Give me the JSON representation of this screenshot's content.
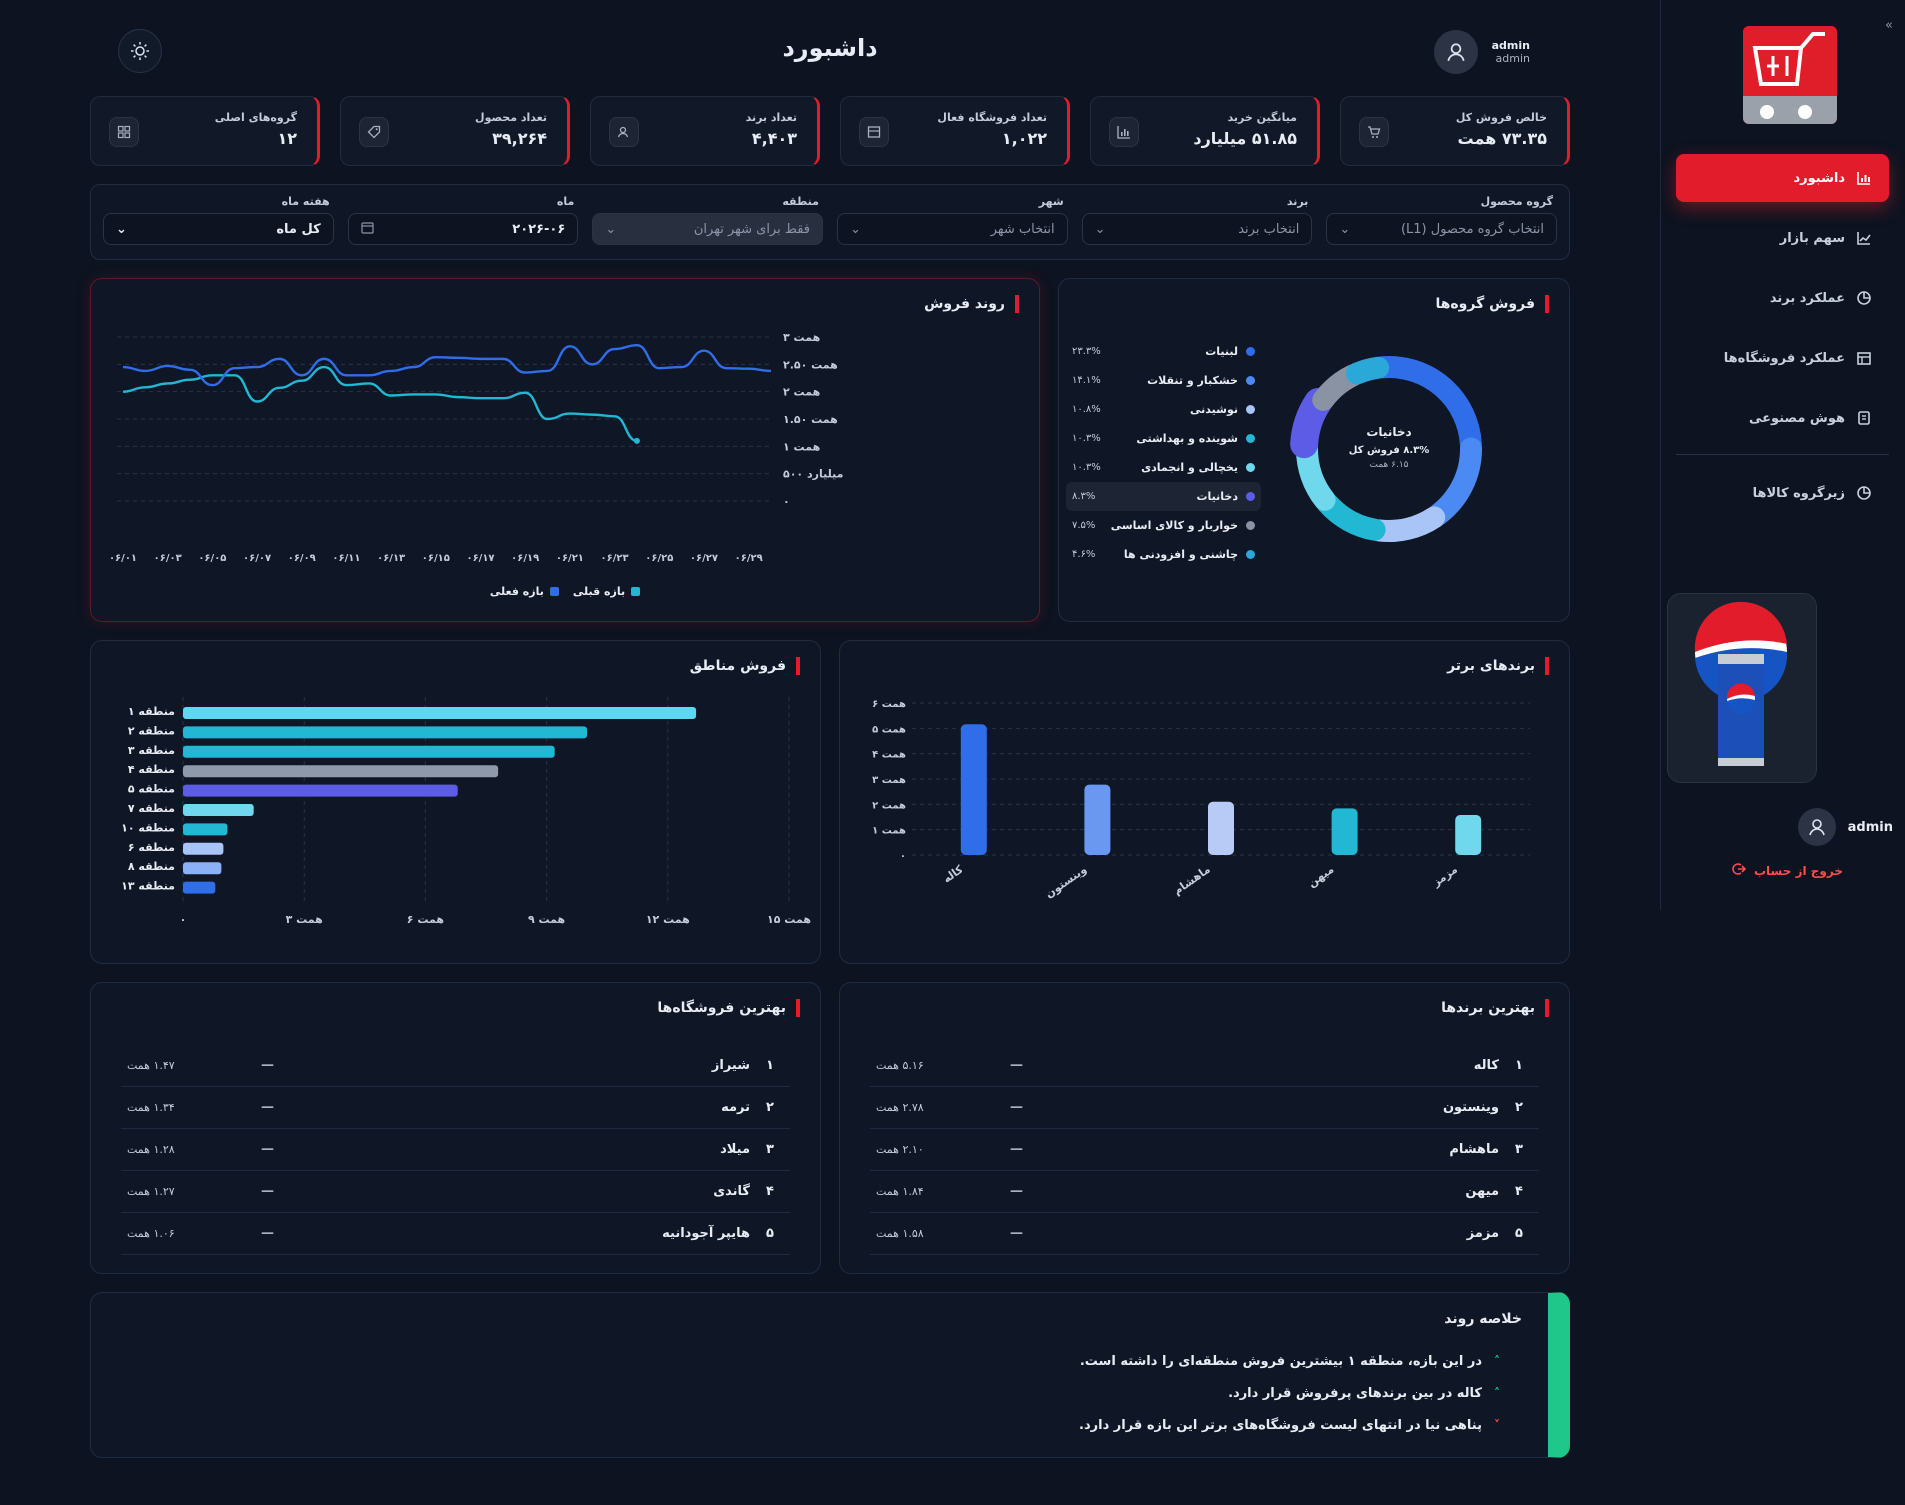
{
  "app": {
    "title": "داشبورد",
    "user": {
      "name": "admin",
      "role": "admin"
    }
  },
  "sidebar": {
    "items": [
      {
        "label": "داشبورد",
        "icon": "bar-chart-icon",
        "active": true
      },
      {
        "label": "سهم بازار",
        "icon": "line-chart-icon"
      },
      {
        "label": "عملکرد برند",
        "icon": "pie-chart-icon"
      },
      {
        "label": "عملکرد فروشگاه‌ها",
        "icon": "store-icon"
      },
      {
        "label": "هوش مصنوعی",
        "icon": "ai-chip-icon"
      },
      {
        "label": "زیرگروه کالاها",
        "icon": "pie-chart-icon"
      }
    ],
    "user": "admin",
    "logout": "خروج از حساب"
  },
  "kpis": [
    {
      "label": "خالص فروش کل",
      "value": "۷۳.۳۵ همت",
      "icon": "cart-icon"
    },
    {
      "label": "میانگین خرید",
      "value": "۵۱.۸۵ میلیارد",
      "icon": "bar-chart-icon"
    },
    {
      "label": "تعداد فروشگاه فعال",
      "value": "۱,۰۲۲",
      "icon": "store-icon"
    },
    {
      "label": "تعداد برند",
      "value": "۴,۴۰۳",
      "icon": "users-icon"
    },
    {
      "label": "تعداد محصول",
      "value": "۳۹,۲۶۴",
      "icon": "tag-icon"
    },
    {
      "label": "گروه‌های اصلی",
      "value": "۱۲",
      "icon": "grid-icon"
    }
  ],
  "filters": [
    {
      "label": "گروه محصول",
      "value": "انتخاب گروه محصول (L1)",
      "kind": "placeholder"
    },
    {
      "label": "برند",
      "value": "انتخاب برند",
      "kind": "placeholder"
    },
    {
      "label": "شهر",
      "value": "انتخاب شهر",
      "kind": "placeholder"
    },
    {
      "label": "منطقه",
      "value": "فقط برای شهر تهران",
      "kind": "disabled"
    },
    {
      "label": "ماه",
      "value": "۲۰۲۶-۰۶",
      "kind": "date"
    },
    {
      "label": "هفته ماه",
      "value": "کل ماه",
      "kind": "selected"
    }
  ],
  "trend": {
    "title": "روند فروش",
    "legend": {
      "current": "بازه فعلی",
      "previous": "بازه قبلی"
    },
    "colors": {
      "current": "#2f6ee8",
      "previous": "#22b7d3"
    }
  },
  "groups": {
    "title": "فروش گروه‌ها",
    "center": {
      "name": "دخانیات",
      "pct": "۸.۳% فروش کل",
      "value": "۶.۱۵ همت"
    },
    "items": [
      {
        "name": "لبنیات",
        "pct": "۲۳.۳%",
        "color": "#2f6ee8"
      },
      {
        "name": "خشکبار و تنقلات",
        "pct": "۱۴.۱%",
        "color": "#4a8af2"
      },
      {
        "name": "نوشیدنی",
        "pct": "۱۰.۸%",
        "color": "#a9c4f7"
      },
      {
        "name": "شوینده و بهداشتی",
        "pct": "۱۰.۳%",
        "color": "#22b7d3"
      },
      {
        "name": "یخچالی و انجمادی",
        "pct": "۱۰.۳%",
        "color": "#6fd8ec"
      },
      {
        "name": "دخانیات",
        "pct": "۸.۳%",
        "color": "#5c5ce6"
      },
      {
        "name": "خواربار و کالای اساسی",
        "pct": "۷.۵%",
        "color": "#8a93a4"
      },
      {
        "name": "چاشنی و افزودنی ها",
        "pct": "۴.۶%",
        "color": "#2aa8d8"
      }
    ]
  },
  "regions": {
    "title": "فروش مناطق"
  },
  "brands": {
    "title": "برندهای برتر"
  },
  "chart_data": [
    {
      "type": "line",
      "title": "روند فروش",
      "x": [
        "۰۶/۰۱",
        "۰۶/۰۲",
        "۰۶/۰۳",
        "۰۶/۰۴",
        "۰۶/۰۵",
        "۰۶/۰۶",
        "۰۶/۰۷",
        "۰۶/۰۸",
        "۰۶/۰۹",
        "۰۶/۱۰",
        "۰۶/۱۱",
        "۰۶/۱۲",
        "۰۶/۱۳",
        "۰۶/۱۴",
        "۰۶/۱۵",
        "۰۶/۱۶",
        "۰۶/۱۷",
        "۰۶/۱۸",
        "۰۶/۱۹",
        "۰۶/۲۰",
        "۰۶/۲۱",
        "۰۶/۲۲",
        "۰۶/۲۳",
        "۰۶/۲۴",
        "۰۶/۲۵",
        "۰۶/۲۶",
        "۰۶/۲۷",
        "۰۶/۲۸",
        "۰۶/۲۹",
        "۰۶/۳۰"
      ],
      "xticks": [
        "۰۶/۰۱",
        "۰۶/۰۳",
        "۰۶/۰۵",
        "۰۶/۰۷",
        "۰۶/۰۹",
        "۰۶/۱۱",
        "۰۶/۱۳",
        "۰۶/۱۵",
        "۰۶/۱۷",
        "۰۶/۱۹",
        "۰۶/۲۱",
        "۰۶/۲۳",
        "۰۶/۲۵",
        "۰۶/۲۷",
        "۰۶/۲۹"
      ],
      "yticks": [
        {
          "v": 0,
          "l": "۰"
        },
        {
          "v": 0.5,
          "l": "۵۰۰ میلیارد"
        },
        {
          "v": 1,
          "l": "۱ همت"
        },
        {
          "v": 1.5,
          "l": "۱.۵۰ همت"
        },
        {
          "v": 2,
          "l": "۲ همت"
        },
        {
          "v": 2.5,
          "l": "۲.۵۰ همت"
        },
        {
          "v": 3,
          "l": "۳ همت"
        }
      ],
      "ylim": [
        0,
        3
      ],
      "series": [
        {
          "name": "بازه فعلی",
          "values": [
            2.45,
            2.38,
            2.47,
            2.4,
            2.12,
            2.43,
            2.45,
            2.6,
            2.3,
            2.6,
            2.3,
            2.3,
            2.38,
            2.45,
            2.63,
            2.62,
            2.6,
            2.6,
            2.35,
            2.38,
            2.83,
            2.5,
            2.78,
            2.85,
            2.43,
            2.45,
            2.75,
            2.43,
            2.42,
            2.38
          ]
        },
        {
          "name": "بازه قبلی",
          "values": [
            2.0,
            2.08,
            2.15,
            2.22,
            2.3,
            2.3,
            1.82,
            2.07,
            2.2,
            2.45,
            2.12,
            2.15,
            1.93,
            1.95,
            1.95,
            1.9,
            1.88,
            1.88,
            1.98,
            1.5,
            1.6,
            1.58,
            1.55,
            1.1,
            null,
            null,
            null,
            null,
            null,
            null
          ]
        }
      ]
    },
    {
      "type": "bar",
      "orientation": "horizontal",
      "title": "فروش مناطق",
      "categories": [
        "منطقه ۱",
        "منطقه ۲",
        "منطقه ۳",
        "منطقه ۴",
        "منطقه ۵",
        "منطقه ۷",
        "منطقه ۱۰",
        "منطقه ۶",
        "منطقه ۸",
        "منطقه ۱۳"
      ],
      "values": [
        12.7,
        10.0,
        9.2,
        7.8,
        6.8,
        1.75,
        1.1,
        1.0,
        0.95,
        0.8
      ],
      "colors": [
        "#5ed8f2",
        "#22b7d3",
        "#22b7d3",
        "#8e99ab",
        "#5c5ce6",
        "#6fd8ec",
        "#22b7d3",
        "#a9c4f7",
        "#8cb0f5",
        "#2f6ee8"
      ],
      "xticks": [
        {
          "v": 0,
          "l": "۰"
        },
        {
          "v": 3,
          "l": "۳ همت"
        },
        {
          "v": 6,
          "l": "۶ همت"
        },
        {
          "v": 9,
          "l": "۹ همت"
        },
        {
          "v": 12,
          "l": "۱۲ همت"
        },
        {
          "v": 15,
          "l": "۱۵ همت"
        }
      ],
      "xlim": [
        0,
        15
      ]
    },
    {
      "type": "bar",
      "title": "برندهای برتر",
      "categories": [
        "کاله",
        "وینستون",
        "ماهشام",
        "میهن",
        "مزمز"
      ],
      "values": [
        5.16,
        2.78,
        2.1,
        1.84,
        1.58
      ],
      "colors": [
        "#2f6ee8",
        "#6a98f0",
        "#b7cbf6",
        "#22b7d3",
        "#6fd8ec"
      ],
      "yticks": [
        {
          "v": 0,
          "l": "۰"
        },
        {
          "v": 1,
          "l": "۱ همت"
        },
        {
          "v": 2,
          "l": "۲ همت"
        },
        {
          "v": 3,
          "l": "۳ همت"
        },
        {
          "v": 4,
          "l": "۴ همت"
        },
        {
          "v": 5,
          "l": "۵ همت"
        },
        {
          "v": 6,
          "l": "۶ همت"
        }
      ],
      "ylim": [
        0,
        6
      ]
    },
    {
      "type": "pie",
      "title": "فروش گروه‌ها",
      "categories": [
        "لبنیات",
        "خشکبار و تنقلات",
        "نوشیدنی",
        "شوینده و بهداشتی",
        "یخچالی و انجمادی",
        "دخانیات",
        "خواربار و کالای اساسی",
        "چاشنی و افزودنی ها"
      ],
      "values": [
        23.3,
        14.1,
        10.8,
        10.3,
        10.3,
        8.3,
        7.5,
        4.6
      ]
    }
  ],
  "best_stores": {
    "title": "بهترین فروشگاه‌ها",
    "rows": [
      {
        "rank": "۱",
        "name": "شیراز",
        "value": "۱.۴۷ همت"
      },
      {
        "rank": "۲",
        "name": "ترمه",
        "value": "۱.۳۴ همت"
      },
      {
        "rank": "۳",
        "name": "میلاد",
        "value": "۱.۲۸ همت"
      },
      {
        "rank": "۴",
        "name": "گاندی",
        "value": "۱.۲۷ همت"
      },
      {
        "rank": "۵",
        "name": "هایپر آجودانیه",
        "value": "۱.۰۶ همت"
      }
    ]
  },
  "best_brands": {
    "title": "بهترین برندها",
    "rows": [
      {
        "rank": "۱",
        "name": "کاله",
        "value": "۵.۱۶ همت"
      },
      {
        "rank": "۲",
        "name": "وینستون",
        "value": "۲.۷۸ همت"
      },
      {
        "rank": "۳",
        "name": "ماهشام",
        "value": "۲.۱۰ همت"
      },
      {
        "rank": "۴",
        "name": "میهن",
        "value": "۱.۸۴ همت"
      },
      {
        "rank": "۵",
        "name": "مزمز",
        "value": "۱.۵۸ همت"
      }
    ]
  },
  "summary": {
    "title": "خلاصه روند",
    "items": [
      {
        "dir": "up",
        "text": "در این بازه، منطقه ۱ بیشترین فروش منطقه‌ای را داشته است."
      },
      {
        "dir": "up",
        "text": "کاله در بین برندهای پرفروش قرار دارد."
      },
      {
        "dir": "down",
        "text": "پناهی نیا در انتهای لیست فروشگاه‌های برتر این بازه قرار دارد."
      }
    ]
  }
}
